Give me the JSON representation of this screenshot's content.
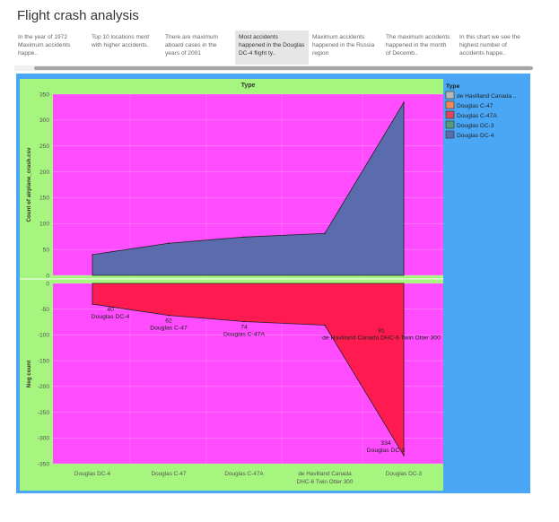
{
  "page_title": "Flight crash analysis",
  "story_points": [
    {
      "label": "In the year of 1972 Maximum accidents happe..",
      "active": false
    },
    {
      "label": "Top 10 locations  ment with higher accidents.",
      "active": false
    },
    {
      "label": "There are maximum aboard cases in the years of 2001",
      "active": false
    },
    {
      "label": "Most accidents happened in the Douglas DC-4 flight ty..",
      "active": true
    },
    {
      "label": "Maximum accidents happened  in the Russia region",
      "active": false
    },
    {
      "label": "The maximum accidents happened in the month of Decemb..",
      "active": false
    },
    {
      "label": "In this chart we see the highest number of accidents happe..",
      "active": false
    }
  ],
  "colors": {
    "panel_bg": "#4aa7f5",
    "header_bg": "#a6f57f",
    "plot_bg": "#ff4cff",
    "upper_area": "#5a6cad",
    "lower_area": "#ff1b4f",
    "axis_text": "#555555"
  },
  "legend": {
    "title": "Type",
    "items": [
      {
        "label": "de Havilland Canada ..",
        "color": "#b8b8b8"
      },
      {
        "label": "Douglas C-47",
        "color": "#f6875a"
      },
      {
        "label": "Douglas C-47A",
        "color": "#e0455b"
      },
      {
        "label": "Douglas DC-3",
        "color": "#5a9a7a"
      },
      {
        "label": "Douglas DC-4",
        "color": "#5a6cad"
      }
    ]
  },
  "chart_data": {
    "type": "area",
    "header": "Type",
    "categories": [
      "Douglas DC-4",
      "Douglas C-47",
      "Douglas C-47A",
      "de Havilland Canada DHC-6 Twin Otter 300",
      "Douglas DC-3"
    ],
    "category_labels": [
      [
        "Douglas DC-4"
      ],
      [
        "Douglas C-47"
      ],
      [
        "Douglas C-47A"
      ],
      [
        "de Havilland Canada",
        "DHC-6 Twin Otter 300"
      ],
      [
        "Douglas DC-3"
      ]
    ],
    "upper": {
      "ylabel": "Count of airplane_crash.csv",
      "ylim": [
        0,
        350
      ],
      "ticks": [
        "350",
        "300",
        "250",
        "200",
        "150",
        "100",
        "50",
        "0"
      ],
      "values": [
        40,
        62,
        74,
        81,
        334
      ]
    },
    "lower": {
      "ylabel": "Neg count",
      "ylim": [
        -350,
        0
      ],
      "ticks": [
        "0",
        "-50",
        "-100",
        "-150",
        "-200",
        "-250",
        "-300",
        "-350"
      ],
      "values": [
        -40,
        -62,
        -74,
        -81,
        -334
      ]
    },
    "data_labels": [
      {
        "value": "40",
        "name": "Douglas DC-4"
      },
      {
        "value": "62",
        "name": "Douglas C-47"
      },
      {
        "value": "74",
        "name": "Douglas C-47A"
      },
      {
        "value": "81",
        "name": "de Havilland Canada DHC-6 Twin Otter 300"
      },
      {
        "value": "334",
        "name": "Douglas DC-3"
      }
    ],
    "grid": true
  }
}
